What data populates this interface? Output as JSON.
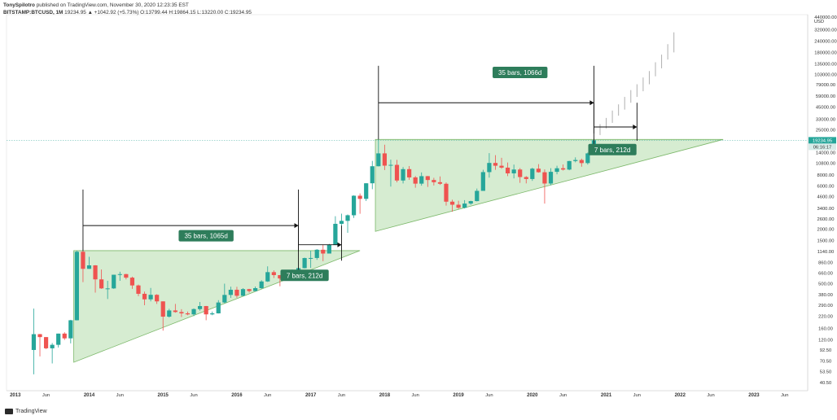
{
  "header": {
    "author": "TonySpilotro",
    "published": " published on TradingView.com, November 30, 2020 12:23:35 EST",
    "symbol": "BITSTAMP:BTCUSD, 1M",
    "quote": " 19234.95 ▲ +1042.92 (+5.73%) O:13799.44 H:19864.15 L:13220.00 C:19234.95"
  },
  "footer": {
    "brand": "TradingView"
  },
  "colors": {
    "up": "#26a69a",
    "down": "#ef5350",
    "triangle_fill": "#c8e6c2",
    "triangle_stroke": "#7cb86a",
    "label_bg": "#2e7d5b",
    "price_tag": "#26a69a",
    "projection": "#b0b0b0"
  },
  "chart_data": {
    "type": "candlestick",
    "y_scale": "log",
    "y_axis_unit": "USD",
    "y_ticks": [
      "440000.00",
      "320000.00",
      "240000.00",
      "180000.00",
      "135000.00",
      "103000.00",
      "79000.00",
      "59000.00",
      "45000.00",
      "33000.00",
      "25000.00",
      "14000.00",
      "10800.00",
      "8000.00",
      "6000.00",
      "4600.00",
      "3400.00",
      "2600.00",
      "2000.00",
      "1500.00",
      "1140.00",
      "860.00",
      "660.00",
      "500.00",
      "380.00",
      "290.00",
      "220.00",
      "160.00",
      "120.00",
      "92.50",
      "70.50",
      "53.50",
      "40.50"
    ],
    "x_ticks": [
      "2013",
      "Jun",
      "2014",
      "Jun",
      "2015",
      "Jun",
      "2016",
      "Jun",
      "2017",
      "Jun",
      "2018",
      "Jun",
      "2019",
      "Jun",
      "2020",
      "Jun",
      "2021",
      "Jun",
      "2022",
      "Jun",
      "2023",
      "Jun"
    ],
    "last_price": "19234.95",
    "last_price_sub": "06:16:17",
    "series_monthly_close": [
      {
        "t": "2013-04",
        "o": 93,
        "h": 266,
        "l": 50,
        "c": 139
      },
      {
        "t": "2013-05",
        "o": 139,
        "h": 140,
        "l": 79,
        "c": 129
      },
      {
        "t": "2013-06",
        "o": 129,
        "h": 129,
        "l": 95,
        "c": 97
      },
      {
        "t": "2013-07",
        "o": 97,
        "h": 111,
        "l": 66,
        "c": 106
      },
      {
        "t": "2013-08",
        "o": 106,
        "h": 141,
        "l": 99,
        "c": 141
      },
      {
        "t": "2013-09",
        "o": 141,
        "h": 146,
        "l": 120,
        "c": 125
      },
      {
        "t": "2013-10",
        "o": 125,
        "h": 200,
        "l": 110,
        "c": 198
      },
      {
        "t": "2013-11",
        "o": 198,
        "h": 1163,
        "l": 197,
        "c": 1130
      },
      {
        "t": "2013-12",
        "o": 1130,
        "h": 1160,
        "l": 522,
        "c": 732
      },
      {
        "t": "2014-01",
        "o": 732,
        "h": 995,
        "l": 730,
        "c": 800
      },
      {
        "t": "2014-02",
        "o": 800,
        "h": 805,
        "l": 400,
        "c": 560
      },
      {
        "t": "2014-03",
        "o": 560,
        "h": 720,
        "l": 440,
        "c": 445
      },
      {
        "t": "2014-04",
        "o": 445,
        "h": 540,
        "l": 340,
        "c": 445
      },
      {
        "t": "2014-05",
        "o": 445,
        "h": 630,
        "l": 440,
        "c": 630
      },
      {
        "t": "2014-06",
        "o": 630,
        "h": 680,
        "l": 540,
        "c": 640
      },
      {
        "t": "2014-07",
        "o": 640,
        "h": 645,
        "l": 560,
        "c": 585
      },
      {
        "t": "2014-08",
        "o": 585,
        "h": 600,
        "l": 440,
        "c": 480
      },
      {
        "t": "2014-09",
        "o": 480,
        "h": 490,
        "l": 365,
        "c": 388
      },
      {
        "t": "2014-10",
        "o": 388,
        "h": 410,
        "l": 290,
        "c": 337
      },
      {
        "t": "2014-11",
        "o": 337,
        "h": 450,
        "l": 320,
        "c": 378
      },
      {
        "t": "2014-12",
        "o": 378,
        "h": 384,
        "l": 300,
        "c": 320
      },
      {
        "t": "2015-01",
        "o": 320,
        "h": 320,
        "l": 152,
        "c": 217
      },
      {
        "t": "2015-02",
        "o": 217,
        "h": 265,
        "l": 212,
        "c": 254
      },
      {
        "t": "2015-03",
        "o": 254,
        "h": 300,
        "l": 240,
        "c": 244
      },
      {
        "t": "2015-04",
        "o": 244,
        "h": 262,
        "l": 215,
        "c": 236
      },
      {
        "t": "2015-05",
        "o": 236,
        "h": 247,
        "l": 225,
        "c": 230
      },
      {
        "t": "2015-06",
        "o": 230,
        "h": 268,
        "l": 220,
        "c": 263
      },
      {
        "t": "2015-07",
        "o": 263,
        "h": 315,
        "l": 253,
        "c": 284
      },
      {
        "t": "2015-08",
        "o": 284,
        "h": 285,
        "l": 198,
        "c": 230
      },
      {
        "t": "2015-09",
        "o": 230,
        "h": 247,
        "l": 225,
        "c": 236
      },
      {
        "t": "2015-10",
        "o": 236,
        "h": 330,
        "l": 235,
        "c": 311
      },
      {
        "t": "2015-11",
        "o": 311,
        "h": 502,
        "l": 305,
        "c": 377
      },
      {
        "t": "2015-12",
        "o": 377,
        "h": 465,
        "l": 350,
        "c": 430
      },
      {
        "t": "2016-01",
        "o": 430,
        "h": 463,
        "l": 350,
        "c": 369
      },
      {
        "t": "2016-02",
        "o": 369,
        "h": 448,
        "l": 365,
        "c": 437
      },
      {
        "t": "2016-03",
        "o": 437,
        "h": 440,
        "l": 400,
        "c": 416
      },
      {
        "t": "2016-04",
        "o": 416,
        "h": 467,
        "l": 415,
        "c": 448
      },
      {
        "t": "2016-05",
        "o": 448,
        "h": 548,
        "l": 440,
        "c": 531
      },
      {
        "t": "2016-06",
        "o": 531,
        "h": 780,
        "l": 525,
        "c": 673
      },
      {
        "t": "2016-07",
        "o": 673,
        "h": 704,
        "l": 580,
        "c": 624
      },
      {
        "t": "2016-08",
        "o": 624,
        "h": 625,
        "l": 470,
        "c": 573
      },
      {
        "t": "2016-09",
        "o": 573,
        "h": 612,
        "l": 565,
        "c": 609
      },
      {
        "t": "2016-10",
        "o": 609,
        "h": 720,
        "l": 605,
        "c": 700
      },
      {
        "t": "2016-11",
        "o": 700,
        "h": 757,
        "l": 680,
        "c": 745
      },
      {
        "t": "2016-12",
        "o": 745,
        "h": 975,
        "l": 740,
        "c": 963
      },
      {
        "t": "2017-01",
        "o": 963,
        "h": 1160,
        "l": 750,
        "c": 965
      },
      {
        "t": "2017-02",
        "o": 965,
        "h": 1210,
        "l": 920,
        "c": 1190
      },
      {
        "t": "2017-03",
        "o": 1190,
        "h": 1350,
        "l": 890,
        "c": 1080
      },
      {
        "t": "2017-04",
        "o": 1080,
        "h": 1380,
        "l": 1080,
        "c": 1350
      },
      {
        "t": "2017-05",
        "o": 1350,
        "h": 2790,
        "l": 1340,
        "c": 2300
      },
      {
        "t": "2017-06",
        "o": 2300,
        "h": 2980,
        "l": 2200,
        "c": 2480
      },
      {
        "t": "2017-07",
        "o": 2480,
        "h": 2920,
        "l": 1830,
        "c": 2860
      },
      {
        "t": "2017-08",
        "o": 2860,
        "h": 4740,
        "l": 2670,
        "c": 4700
      },
      {
        "t": "2017-09",
        "o": 4700,
        "h": 4980,
        "l": 2970,
        "c": 4340
      },
      {
        "t": "2017-10",
        "o": 4340,
        "h": 6470,
        "l": 4110,
        "c": 6450
      },
      {
        "t": "2017-11",
        "o": 6450,
        "h": 11400,
        "l": 5550,
        "c": 9950
      },
      {
        "t": "2017-12",
        "o": 9950,
        "h": 19666,
        "l": 9900,
        "c": 13800
      },
      {
        "t": "2018-01",
        "o": 13800,
        "h": 17200,
        "l": 9030,
        "c": 10100
      },
      {
        "t": "2018-02",
        "o": 10100,
        "h": 11780,
        "l": 5920,
        "c": 10300
      },
      {
        "t": "2018-03",
        "o": 10300,
        "h": 11700,
        "l": 6600,
        "c": 6920
      },
      {
        "t": "2018-04",
        "o": 6920,
        "h": 9750,
        "l": 6430,
        "c": 9240
      },
      {
        "t": "2018-05",
        "o": 9240,
        "h": 9990,
        "l": 7050,
        "c": 7490
      },
      {
        "t": "2018-06",
        "o": 7490,
        "h": 7760,
        "l": 5760,
        "c": 6390
      },
      {
        "t": "2018-07",
        "o": 6390,
        "h": 8500,
        "l": 6070,
        "c": 7730
      },
      {
        "t": "2018-08",
        "o": 7730,
        "h": 7760,
        "l": 5880,
        "c": 7010
      },
      {
        "t": "2018-09",
        "o": 7010,
        "h": 7410,
        "l": 6100,
        "c": 6630
      },
      {
        "t": "2018-10",
        "o": 6630,
        "h": 7680,
        "l": 6200,
        "c": 6370
      },
      {
        "t": "2018-11",
        "o": 6370,
        "h": 6590,
        "l": 3650,
        "c": 4040
      },
      {
        "t": "2018-12",
        "o": 4040,
        "h": 4240,
        "l": 3130,
        "c": 3740
      },
      {
        "t": "2019-01",
        "o": 3740,
        "h": 4140,
        "l": 3360,
        "c": 3460
      },
      {
        "t": "2019-02",
        "o": 3460,
        "h": 4200,
        "l": 3400,
        "c": 3850
      },
      {
        "t": "2019-03",
        "o": 3850,
        "h": 4140,
        "l": 3730,
        "c": 4100
      },
      {
        "t": "2019-04",
        "o": 4100,
        "h": 5640,
        "l": 4070,
        "c": 5320
      },
      {
        "t": "2019-05",
        "o": 5320,
        "h": 9100,
        "l": 5320,
        "c": 8570
      },
      {
        "t": "2019-06",
        "o": 8570,
        "h": 13880,
        "l": 7440,
        "c": 10820
      },
      {
        "t": "2019-07",
        "o": 10820,
        "h": 13200,
        "l": 9080,
        "c": 10080
      },
      {
        "t": "2019-08",
        "o": 10080,
        "h": 12320,
        "l": 9320,
        "c": 9600
      },
      {
        "t": "2019-09",
        "o": 9600,
        "h": 10940,
        "l": 7730,
        "c": 8300
      },
      {
        "t": "2019-10",
        "o": 8300,
        "h": 10370,
        "l": 7300,
        "c": 9150
      },
      {
        "t": "2019-11",
        "o": 9150,
        "h": 9500,
        "l": 6520,
        "c": 7560
      },
      {
        "t": "2019-12",
        "o": 7560,
        "h": 7740,
        "l": 6430,
        "c": 7190
      },
      {
        "t": "2020-01",
        "o": 7190,
        "h": 9580,
        "l": 6860,
        "c": 9350
      },
      {
        "t": "2020-02",
        "o": 9350,
        "h": 10500,
        "l": 8450,
        "c": 8540
      },
      {
        "t": "2020-03",
        "o": 8540,
        "h": 9190,
        "l": 3850,
        "c": 6410
      },
      {
        "t": "2020-04",
        "o": 6410,
        "h": 9460,
        "l": 6150,
        "c": 8630
      },
      {
        "t": "2020-05",
        "o": 8630,
        "h": 10070,
        "l": 8110,
        "c": 9450
      },
      {
        "t": "2020-06",
        "o": 9450,
        "h": 10400,
        "l": 8920,
        "c": 9140
      },
      {
        "t": "2020-07",
        "o": 9140,
        "h": 11430,
        "l": 8990,
        "c": 11350
      },
      {
        "t": "2020-08",
        "o": 11350,
        "h": 12470,
        "l": 10990,
        "c": 11660
      },
      {
        "t": "2020-09",
        "o": 11660,
        "h": 12070,
        "l": 9830,
        "c": 10780
      },
      {
        "t": "2020-10",
        "o": 10780,
        "h": 14100,
        "l": 10380,
        "c": 13800
      },
      {
        "t": "2020-11",
        "o": 13799.44,
        "h": 19864.15,
        "l": 13220.0,
        "c": 19234.95
      }
    ],
    "triangle_1": {
      "apex_t": "2013-11",
      "apex_p": 1163,
      "low_start_p": 68,
      "end_t": "2017-09",
      "end_p": 1163
    },
    "triangle_2": {
      "apex_t": "2017-12",
      "apex_p": 19666,
      "low_start_p": 1900,
      "end_t": "2022-08",
      "end_p": 19666
    },
    "annotations": [
      {
        "text": "35 bars, 1065d",
        "t": "2015-08",
        "p": 1700
      },
      {
        "text": "7 bars, 212d",
        "t": "2016-12",
        "p": 620
      },
      {
        "text": "35 bars, 1066d",
        "t": "2019-11",
        "p": 108000
      },
      {
        "text": "7 bars, 212d",
        "t": "2021-02",
        "p": 15200
      }
    ],
    "measures": [
      {
        "from_t": "2013-12",
        "to_t": "2016-11",
        "p": 2200,
        "vert_top": 5500
      },
      {
        "from_t": "2016-11",
        "to_t": "2017-06",
        "p": 1350,
        "vert_top": 2200
      },
      {
        "from_t": "2017-12",
        "to_t": "2020-11",
        "p": 50000,
        "vert_top": 128000
      },
      {
        "from_t": "2020-11",
        "to_t": "2021-06",
        "p": 27000,
        "vert_top": 50000
      }
    ],
    "projection_bars": [
      [
        22000,
        29000
      ],
      [
        26000,
        34000
      ],
      [
        30000,
        41000
      ],
      [
        36000,
        48000
      ],
      [
        42000,
        58000
      ],
      [
        50000,
        69000
      ],
      [
        58000,
        80000
      ],
      [
        67000,
        95000
      ],
      [
        80000,
        112000
      ],
      [
        98000,
        140000
      ],
      [
        120000,
        170000
      ],
      [
        150000,
        222000
      ],
      [
        180000,
        300000
      ]
    ]
  }
}
